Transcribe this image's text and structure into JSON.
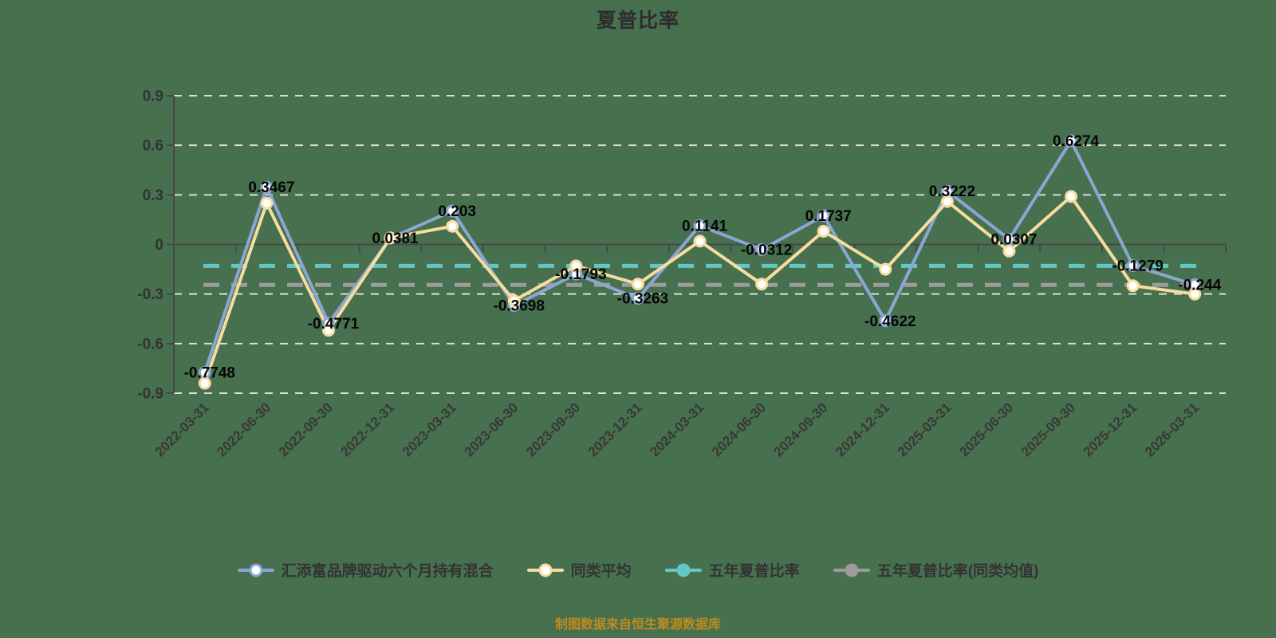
{
  "title": "夏普比率",
  "footer": "制图数据来自恒生聚源数据库",
  "colors": {
    "background": "#47704e",
    "title_text": "#2d2d2d",
    "data_label_text": "#050505",
    "axis_text": "#333333",
    "grid_line": "#dcdcdc",
    "axis_line": "#474747",
    "fund_series": "#8ca6d4",
    "peer_series": "#f7dca0",
    "five_year_line": "#63c8c5",
    "five_year_peer_line": "#9c9c9c",
    "footer_text": "#bf8b1d"
  },
  "legend": [
    {
      "label": "汇添富品牌驱动六个月持有混合",
      "color": "#8ca6d4",
      "marker": "ring"
    },
    {
      "label": "同类平均",
      "color": "#f7dca0",
      "marker": "ring"
    },
    {
      "label": "五年夏普比率",
      "color": "#63c8c5",
      "marker": "dot"
    },
    {
      "label": "五年夏普比率(同类均值)",
      "color": "#9c9c9c",
      "marker": "dot"
    }
  ],
  "chart_data": {
    "type": "line",
    "title": "夏普比率",
    "categories": [
      "2022-03-31",
      "2022-06-30",
      "2022-09-30",
      "2022-12-31",
      "2023-03-31",
      "2023-06-30",
      "2023-09-30",
      "2023-12-31",
      "2024-03-31",
      "2024-06-30",
      "2024-09-30",
      "2024-12-31",
      "2025-03-31",
      "2025-06-30",
      "2025-09-30",
      "2025-12-31",
      "2026-03-31"
    ],
    "series": [
      {
        "name": "汇添富品牌驱动六个月持有混合",
        "type": "line",
        "color": "#8ca6d4",
        "values": [
          -0.7748,
          0.3467,
          -0.4771,
          0.0381,
          0.203,
          -0.3698,
          -0.1793,
          -0.3263,
          0.1141,
          -0.0312,
          0.1737,
          -0.4622,
          0.3222,
          0.0307,
          0.6274,
          -0.1279,
          -0.244
        ],
        "data_labels": [
          "-0.7748",
          "0.3467",
          "-0.4771",
          "0.0381",
          "0.203",
          "-0.3698",
          "-0.1793",
          "-0.3263",
          "0.1141",
          "-0.0312",
          "0.1737",
          "-0.4622",
          "0.3222",
          "0.0307",
          "0.6274",
          "-0.1279",
          "-0.244"
        ]
      },
      {
        "name": "同类平均",
        "type": "line",
        "color": "#f7dca0",
        "values": [
          -0.84,
          0.25,
          -0.52,
          0.04,
          0.11,
          -0.34,
          -0.13,
          -0.24,
          0.02,
          -0.24,
          0.08,
          -0.15,
          0.26,
          -0.04,
          0.29,
          -0.25,
          -0.3
        ]
      },
      {
        "name": "五年夏普比率",
        "type": "hline",
        "color": "#63c8c5",
        "value": -0.13
      },
      {
        "name": "五年夏普比率(同类均值)",
        "type": "hline",
        "color": "#9c9c9c",
        "value": -0.245
      }
    ],
    "ylim": [
      -0.9,
      0.9
    ],
    "yticks": [
      0.9,
      0.6,
      0.3,
      0,
      -0.3,
      -0.6,
      -0.9
    ],
    "ytick_labels": [
      "0.9",
      "0.6",
      "0.3",
      "0",
      "-0.3",
      "-0.6",
      "-0.9"
    ],
    "grid": true,
    "grid_style": "dashed",
    "legend_position": "bottom",
    "x_label_rotation": 45
  }
}
